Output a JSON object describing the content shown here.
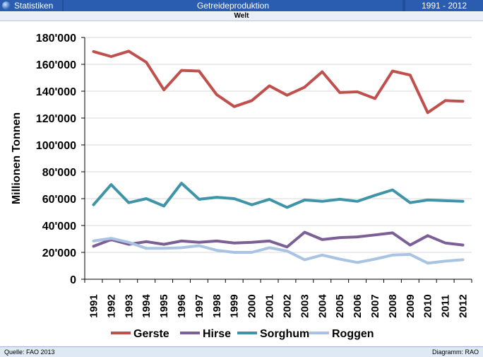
{
  "header": {
    "left_label": "Statistiken",
    "title": "Getreideproduktion",
    "range": "1991 - 2012",
    "subtitle": "Welt",
    "globe_icon": "globe-icon"
  },
  "footer": {
    "source": "Quelle:  FAO 2013",
    "credit": "Diagramm: RAO"
  },
  "colors": {
    "header_bg": "#2a5db0",
    "Gerste": "#c0504d",
    "Hirse": "#7b5f95",
    "Sorghum": "#3f95a7",
    "Roggen": "#a9c4e3"
  },
  "chart_data": {
    "type": "line",
    "ylabel": "Millionen Tonnen",
    "xlabel": "",
    "ylim": [
      0,
      180000
    ],
    "yticks": [
      0,
      20000,
      40000,
      60000,
      80000,
      100000,
      120000,
      140000,
      160000,
      180000
    ],
    "ytick_labels": [
      "0",
      "20'000",
      "40'000",
      "60'000",
      "80'000",
      "100'000",
      "120'000",
      "140'000",
      "160'000",
      "180'000"
    ],
    "x": [
      "1991",
      "1992",
      "1993",
      "1994",
      "1995",
      "1996",
      "1997",
      "1998",
      "1999",
      "2000",
      "2001",
      "2002",
      "2003",
      "2004",
      "2005",
      "2006",
      "2007",
      "2008",
      "2009",
      "2010",
      "2011",
      "2012"
    ],
    "grid": "horizontal",
    "legend_position": "bottom",
    "series": [
      {
        "name": "Gerste",
        "values": [
          169500,
          165800,
          169800,
          161500,
          141000,
          155500,
          155000,
          137500,
          128500,
          133000,
          144000,
          137000,
          143000,
          154500,
          139000,
          139500,
          134500,
          155000,
          152000,
          124000,
          133000,
          132500
        ]
      },
      {
        "name": "Hirse",
        "values": [
          24500,
          29500,
          26000,
          28000,
          26000,
          28500,
          27500,
          28500,
          27000,
          27500,
          28500,
          24000,
          35000,
          29500,
          31000,
          31500,
          33000,
          34500,
          25500,
          32500,
          27000,
          25500
        ]
      },
      {
        "name": "Sorghum",
        "values": [
          55500,
          70500,
          57000,
          60000,
          54500,
          71500,
          59500,
          61000,
          60000,
          55500,
          59500,
          53500,
          59000,
          58000,
          59500,
          58000,
          62500,
          66500,
          57000,
          59000,
          58500,
          58000
        ]
      },
      {
        "name": "Roggen",
        "values": [
          28500,
          30500,
          27500,
          23000,
          23000,
          23500,
          25000,
          21500,
          20000,
          20000,
          23500,
          21000,
          14500,
          18000,
          15000,
          12500,
          15000,
          18000,
          18500,
          12000,
          13500,
          14500
        ]
      }
    ]
  }
}
